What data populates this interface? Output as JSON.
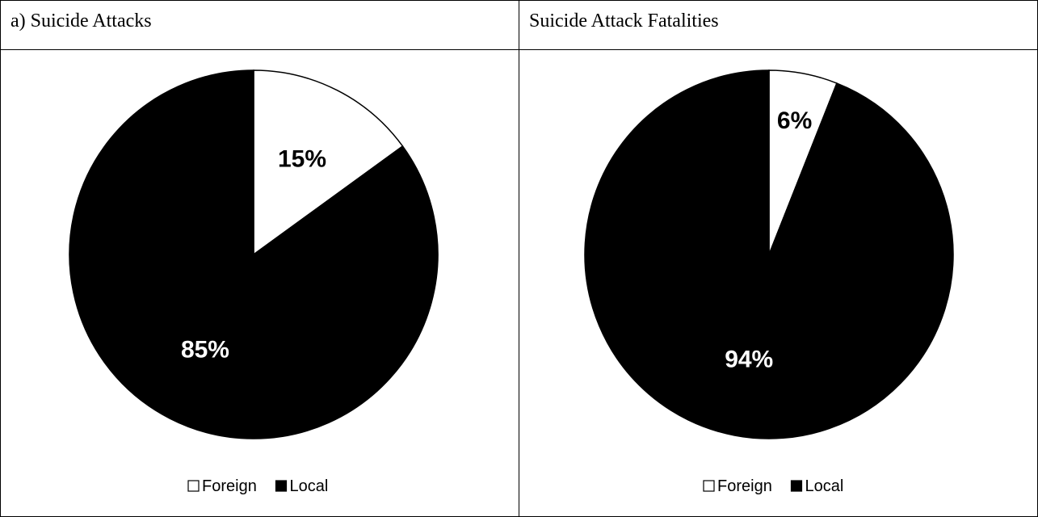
{
  "chart_data": [
    {
      "type": "pie",
      "title": "a) Suicide Attacks",
      "categories": [
        "Foreign",
        "Local"
      ],
      "values": [
        15,
        85
      ],
      "labels": [
        "15%",
        "85%"
      ],
      "colors": [
        "#ffffff",
        "#000000"
      ],
      "label_colors": [
        "#000000",
        "#ffffff"
      ],
      "legend": {
        "placement": "bottom",
        "entries": [
          "Foreign",
          "Local"
        ]
      }
    },
    {
      "type": "pie",
      "title": "Suicide Attack Fatalities",
      "categories": [
        "Foreign",
        "Local"
      ],
      "values": [
        6,
        94
      ],
      "labels": [
        "6%",
        "94%"
      ],
      "colors": [
        "#ffffff",
        "#000000"
      ],
      "label_colors": [
        "#000000",
        "#ffffff"
      ],
      "legend": {
        "placement": "bottom",
        "entries": [
          "Foreign",
          "Local"
        ]
      }
    }
  ]
}
